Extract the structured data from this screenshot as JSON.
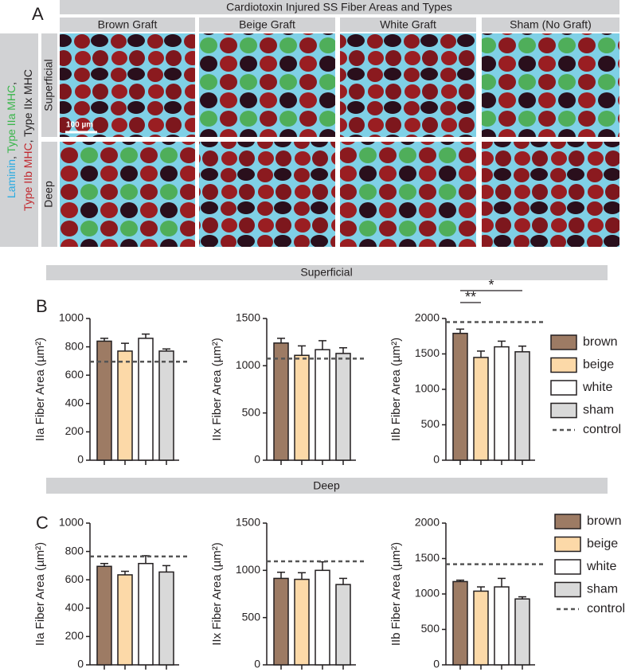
{
  "panel_a": {
    "label": "A",
    "title": "Cardiotoxin Injured SS Fiber Areas and Types",
    "columns": [
      "Brown Graft",
      "Beige Graft",
      "White Graft",
      "Sham (No Graft)"
    ],
    "rows": [
      "Superficial",
      "Deep"
    ],
    "stain_label": [
      {
        "text": "Laminin",
        "color": "#29abe2"
      },
      {
        "text": ", ",
        "color": "#231f20"
      },
      {
        "text": "Type IIa MHC",
        "color": "#39b54a"
      },
      {
        "text": ",",
        "color": "#231f20"
      },
      {
        "text": "Type IIb MHC",
        "color": "#c1272d"
      },
      {
        "text": ", Type IIx MHC",
        "color": "#231f20"
      }
    ],
    "scale_bar": "100 µm"
  },
  "sections": [
    {
      "label": "B",
      "title": "Superficial"
    },
    {
      "label": "C",
      "title": "Deep"
    }
  ],
  "legends": [
    {
      "items": [
        {
          "name": "brown",
          "color": "#9d7b64"
        },
        {
          "name": "beige",
          "color": "#fcd9a8"
        },
        {
          "name": "white",
          "color": "#ffffff"
        },
        {
          "name": "sham",
          "color": "#d9d9d9"
        },
        {
          "name": "control",
          "color": "#555555"
        }
      ]
    },
    {
      "items": [
        {
          "name": "brown",
          "color": "#9d7b64"
        },
        {
          "name": "beige",
          "color": "#fcd9a8"
        },
        {
          "name": "white",
          "color": "#ffffff"
        },
        {
          "name": "sham",
          "color": "#d9d9d9"
        },
        {
          "name": "control",
          "color": "#555555"
        }
      ]
    }
  ],
  "chart_data": [
    {
      "type": "bar",
      "ylabel": "IIa Fiber Area (µm²)",
      "ylim": [
        0,
        1000
      ],
      "yticks": [
        0,
        200,
        400,
        600,
        800,
        1000
      ],
      "values": [
        840,
        770,
        860,
        770
      ],
      "errors": [
        20,
        55,
        30,
        15
      ],
      "colors": [
        "#9d7b64",
        "#fcd9a8",
        "#ffffff",
        "#d9d9d9"
      ],
      "control": 695
    },
    {
      "type": "bar",
      "ylabel": "IIx Fiber Area (µm²)",
      "ylim": [
        0,
        1500
      ],
      "yticks": [
        0,
        500,
        1000,
        1500
      ],
      "values": [
        1240,
        1110,
        1170,
        1130
      ],
      "errors": [
        50,
        100,
        95,
        60
      ],
      "colors": [
        "#9d7b64",
        "#fcd9a8",
        "#ffffff",
        "#d9d9d9"
      ],
      "control": 1075
    },
    {
      "type": "bar",
      "ylabel": "IIb Fiber Area (µm²)",
      "ylim": [
        0,
        2000
      ],
      "yticks": [
        0,
        500,
        1000,
        1500,
        2000
      ],
      "values": [
        1790,
        1450,
        1600,
        1530
      ],
      "errors": [
        60,
        90,
        80,
        80
      ],
      "colors": [
        "#9d7b64",
        "#fcd9a8",
        "#ffffff",
        "#d9d9d9"
      ],
      "control": 1950,
      "annotations": [
        "**",
        "*"
      ]
    },
    {
      "type": "bar",
      "ylabel": "IIa Fiber Area (µm²)",
      "ylim": [
        0,
        1000
      ],
      "yticks": [
        0,
        200,
        400,
        600,
        800,
        1000
      ],
      "values": [
        695,
        635,
        715,
        655
      ],
      "errors": [
        20,
        25,
        55,
        45
      ],
      "colors": [
        "#9d7b64",
        "#fcd9a8",
        "#ffffff",
        "#d9d9d9"
      ],
      "control": 765
    },
    {
      "type": "bar",
      "ylabel": "IIx Fiber Area (µm²)",
      "ylim": [
        0,
        1500
      ],
      "yticks": [
        0,
        500,
        1000,
        1500
      ],
      "values": [
        915,
        905,
        1000,
        850
      ],
      "errors": [
        65,
        70,
        90,
        65
      ],
      "colors": [
        "#9d7b64",
        "#fcd9a8",
        "#ffffff",
        "#d9d9d9"
      ],
      "control": 1095
    },
    {
      "type": "bar",
      "ylabel": "IIb Fiber Area (µm²)",
      "ylim": [
        0,
        2000
      ],
      "yticks": [
        0,
        500,
        1000,
        1500,
        2000
      ],
      "values": [
        1175,
        1040,
        1100,
        930
      ],
      "errors": [
        20,
        60,
        120,
        30
      ],
      "colors": [
        "#9d7b64",
        "#fcd9a8",
        "#ffffff",
        "#d9d9d9"
      ],
      "control": 1420
    }
  ]
}
